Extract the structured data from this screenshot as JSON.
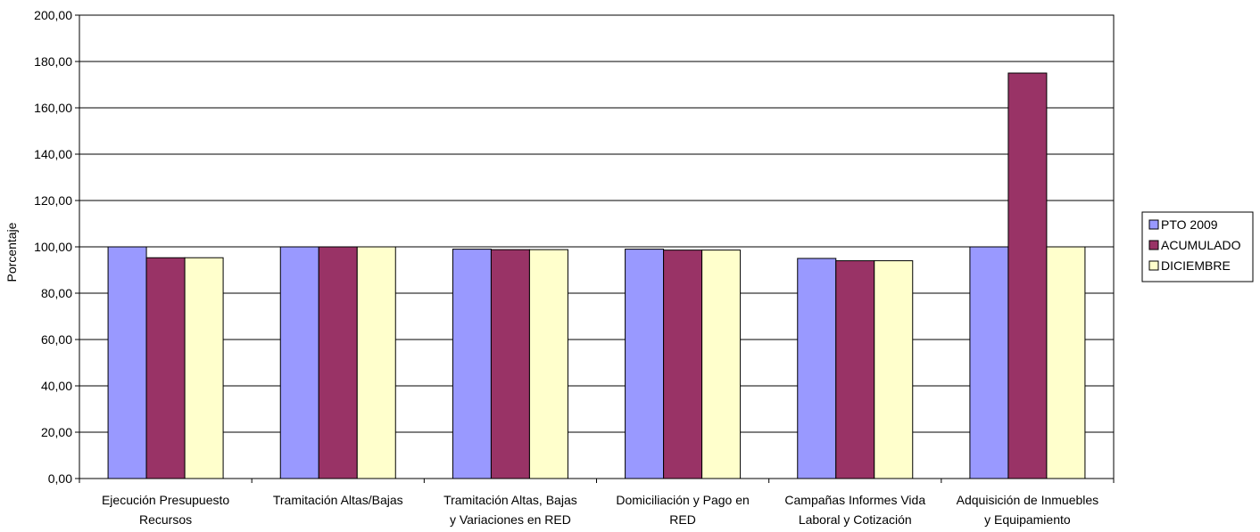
{
  "chart_data": {
    "type": "bar",
    "title": "",
    "xlabel": "",
    "ylabel": "Porcentaje",
    "ylim": [
      0,
      200
    ],
    "yticks": [
      "0,00",
      "20,00",
      "40,00",
      "60,00",
      "80,00",
      "100,00",
      "120,00",
      "140,00",
      "160,00",
      "180,00",
      "200,00"
    ],
    "grid": true,
    "legend_position": "right",
    "categories": [
      [
        "Ejecución Presupuesto",
        "Recursos"
      ],
      [
        "Tramitación Altas/Bajas"
      ],
      [
        "Tramitación Altas, Bajas",
        "y Variaciones en RED"
      ],
      [
        "Domiciliación y Pago en",
        "RED"
      ],
      [
        "Campañas Informes Vida",
        "Laboral y Cotización"
      ],
      [
        "Adquisición de Inmuebles",
        "y Equipamiento"
      ]
    ],
    "series": [
      {
        "name": "PTO 2009",
        "color": "#9999ff",
        "values": [
          100,
          100,
          99,
          99,
          95,
          100
        ]
      },
      {
        "name": "ACUMULADO",
        "color": "#993366",
        "values": [
          95.3,
          100,
          98.8,
          98.6,
          94,
          175
        ]
      },
      {
        "name": "DICIEMBRE",
        "color": "#ffffcc",
        "values": [
          95.3,
          100,
          98.8,
          98.6,
          94,
          100
        ]
      }
    ]
  }
}
